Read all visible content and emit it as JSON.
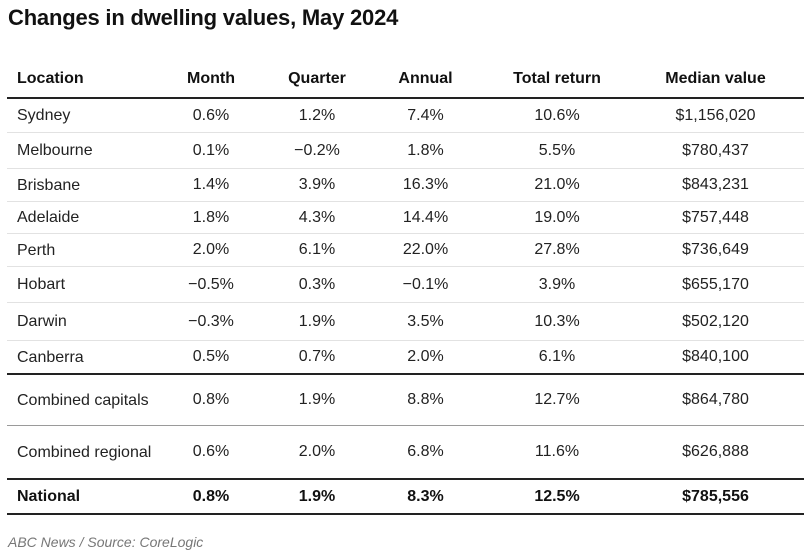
{
  "title": "Changes in dwelling values, May 2024",
  "source": "ABC News / Source: CoreLogic",
  "chart_data": {
    "type": "table",
    "title": "Changes in dwelling values, May 2024",
    "columns": [
      "Location",
      "Month",
      "Quarter",
      "Annual",
      "Total return",
      "Median value"
    ],
    "rows": [
      [
        "Sydney",
        "0.6%",
        "1.2%",
        "7.4%",
        "10.6%",
        "$1,156,020"
      ],
      [
        "Melbourne",
        "0.1%",
        "−0.2%",
        "1.8%",
        "5.5%",
        "$780,437"
      ],
      [
        "Brisbane",
        "1.4%",
        "3.9%",
        "16.3%",
        "21.0%",
        "$843,231"
      ],
      [
        "Adelaide",
        "1.8%",
        "4.3%",
        "14.4%",
        "19.0%",
        "$757,448"
      ],
      [
        "Perth",
        "2.0%",
        "6.1%",
        "22.0%",
        "27.8%",
        "$736,649"
      ],
      [
        "Hobart",
        "−0.5%",
        "0.3%",
        "−0.1%",
        "3.9%",
        "$655,170"
      ],
      [
        "Darwin",
        "−0.3%",
        "1.9%",
        "3.5%",
        "10.3%",
        "$502,120"
      ],
      [
        "Canberra",
        "0.5%",
        "0.7%",
        "2.0%",
        "6.1%",
        "$840,100"
      ],
      [
        "Combined capitals",
        "0.8%",
        "1.9%",
        "8.8%",
        "12.7%",
        "$864,780"
      ],
      [
        "Combined regional",
        "0.6%",
        "2.0%",
        "6.8%",
        "11.6%",
        "$626,888"
      ],
      [
        "National",
        "0.8%",
        "1.9%",
        "8.3%",
        "12.5%",
        "$785,556"
      ]
    ]
  }
}
